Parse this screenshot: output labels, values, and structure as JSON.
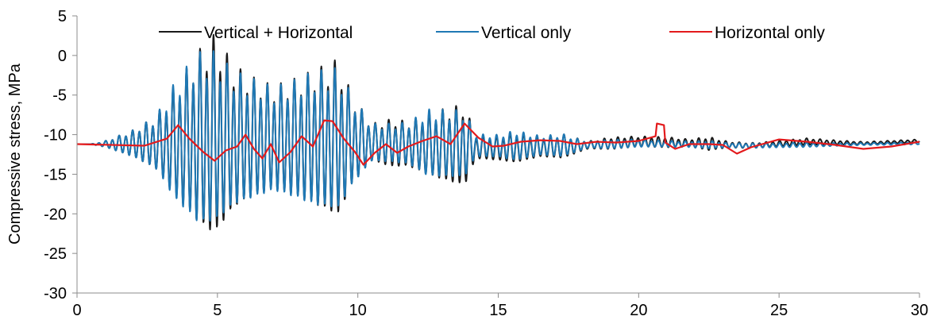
{
  "chart_data": {
    "type": "line",
    "title": "",
    "xlabel": "",
    "ylabel": "Compressive stress, MPa",
    "xlim": [
      0,
      30
    ],
    "ylim": [
      -30,
      5
    ],
    "xticks": [
      0,
      5,
      10,
      15,
      20,
      25,
      30
    ],
    "yticks": [
      5,
      0,
      -5,
      -10,
      -15,
      -20,
      -25,
      -30
    ],
    "grid": false,
    "legend_position": "top",
    "series": [
      {
        "name": "Vertical + Horizontal",
        "color": "#1a1a1a",
        "generator": {
          "base": -11.2,
          "mode": "oscillation",
          "points": [
            [
              0,
              0
            ],
            [
              0.5,
              0
            ],
            [
              1,
              0.4
            ],
            [
              2,
              1.8
            ],
            [
              2.8,
              3.5
            ],
            [
              3.5,
              7.5
            ],
            [
              4.3,
              11.5
            ],
            [
              4.9,
              13.5
            ],
            [
              5.6,
              9.5
            ],
            [
              6.3,
              8
            ],
            [
              7,
              7
            ],
            [
              7.8,
              8
            ],
            [
              8.4,
              9
            ],
            [
              9.3,
              10.5
            ],
            [
              9.8,
              6
            ],
            [
              10.5,
              2.5
            ],
            [
              11.2,
              3.2
            ],
            [
              11.8,
              3
            ],
            [
              12.5,
              4.2
            ],
            [
              13.8,
              5.5
            ],
            [
              14.2,
              1.5
            ],
            [
              15,
              1.6
            ],
            [
              15.6,
              2
            ],
            [
              16.5,
              1.3
            ],
            [
              17.3,
              1.6
            ],
            [
              18.2,
              0.5
            ],
            [
              19,
              0.8
            ],
            [
              20,
              0.7
            ],
            [
              21,
              0.7
            ],
            [
              21.8,
              0.5
            ],
            [
              22.5,
              0.9
            ],
            [
              23.2,
              0.4
            ],
            [
              24.5,
              0.35
            ],
            [
              26,
              0.45
            ],
            [
              27,
              0.3
            ],
            [
              28,
              0.2
            ],
            [
              30,
              0.2
            ]
          ],
          "period": 0.24,
          "offset": [
            [
              0,
              0
            ],
            [
              3.5,
              0
            ],
            [
              5,
              0.5
            ],
            [
              9.2,
              0.3
            ],
            [
              15,
              -0.6
            ],
            [
              17.5,
              -0.3
            ],
            [
              20,
              0.3
            ],
            [
              22,
              0.1
            ],
            [
              24,
              -0.2
            ],
            [
              26,
              0.3
            ],
            [
              28,
              0.1
            ],
            [
              30,
              0.4
            ]
          ]
        }
      },
      {
        "name": "Vertical only",
        "color": "#1f78b4",
        "generator": {
          "base": -11.2,
          "mode": "oscillation",
          "points": [
            [
              0,
              0
            ],
            [
              0.5,
              0
            ],
            [
              1,
              0.4
            ],
            [
              2,
              1.8
            ],
            [
              2.8,
              3.5
            ],
            [
              3.5,
              8
            ],
            [
              4.3,
              11.5
            ],
            [
              4.9,
              11.5
            ],
            [
              5.6,
              9
            ],
            [
              6.3,
              8
            ],
            [
              7,
              7
            ],
            [
              7.8,
              8
            ],
            [
              8.4,
              9
            ],
            [
              9.3,
              9.5
            ],
            [
              9.8,
              6
            ],
            [
              10.5,
              2.5
            ],
            [
              11.2,
              2.6
            ],
            [
              11.8,
              2.8
            ],
            [
              12.5,
              4.5
            ],
            [
              13.8,
              4.5
            ],
            [
              14.2,
              1.5
            ],
            [
              15,
              1.5
            ],
            [
              15.6,
              2
            ],
            [
              16.5,
              1.3
            ],
            [
              17.3,
              1.5
            ],
            [
              18.2,
              0.4
            ],
            [
              19,
              0.6
            ],
            [
              20,
              0.5
            ],
            [
              21,
              0.4
            ],
            [
              21.8,
              0.4
            ],
            [
              22.5,
              0.5
            ],
            [
              23.2,
              0.3
            ],
            [
              24.5,
              0.3
            ],
            [
              26,
              0.3
            ],
            [
              27,
              0.2
            ],
            [
              28,
              0.15
            ],
            [
              30,
              0.15
            ]
          ],
          "period": 0.24,
          "offset": [
            [
              0,
              0
            ],
            [
              3.5,
              0
            ],
            [
              5,
              0.3
            ],
            [
              9.2,
              0.2
            ],
            [
              15,
              -0.3
            ],
            [
              17.5,
              -0.2
            ],
            [
              20,
              0.1
            ],
            [
              24,
              -0.2
            ],
            [
              30,
              0.1
            ]
          ]
        }
      },
      {
        "name": "Horizontal only",
        "color": "#e31a1c",
        "x": [
          0,
          2.4,
          3.2,
          3.6,
          4,
          4.5,
          4.9,
          5.3,
          5.7,
          6,
          6.3,
          6.6,
          6.9,
          7.2,
          7.6,
          8,
          8.4,
          8.8,
          9.1,
          9.5,
          9.9,
          10.2,
          10.6,
          11,
          11.4,
          11.8,
          12.3,
          12.8,
          13.3,
          13.8,
          14.3,
          14.8,
          15.2,
          15.8,
          16.5,
          17.2,
          17.8,
          18.5,
          19.2,
          20,
          20.6,
          20.65,
          20.9,
          20.95,
          21.3,
          21.8,
          22.5,
          23,
          23.5,
          24,
          24.5,
          25,
          26,
          27,
          28,
          29,
          30
        ],
        "y": [
          -11.2,
          -11.4,
          -10.5,
          -8.8,
          -10.5,
          -12.2,
          -13.3,
          -12,
          -11.5,
          -10,
          -11.8,
          -13,
          -11.2,
          -13.5,
          -12.2,
          -10.2,
          -11.5,
          -8.2,
          -8.3,
          -10.5,
          -12.2,
          -13.8,
          -12.3,
          -11.2,
          -12.3,
          -11.5,
          -10.8,
          -10.2,
          -11.2,
          -8.6,
          -10.4,
          -11.5,
          -11.4,
          -10.9,
          -10.7,
          -10.8,
          -11.2,
          -10.9,
          -11,
          -10.8,
          -10.2,
          -8.6,
          -8.8,
          -11,
          -11.8,
          -11.2,
          -11.2,
          -11.3,
          -12.4,
          -11.6,
          -11.1,
          -10.6,
          -10.9,
          -11.3,
          -11.8,
          -11.5,
          -10.9
        ]
      }
    ]
  }
}
